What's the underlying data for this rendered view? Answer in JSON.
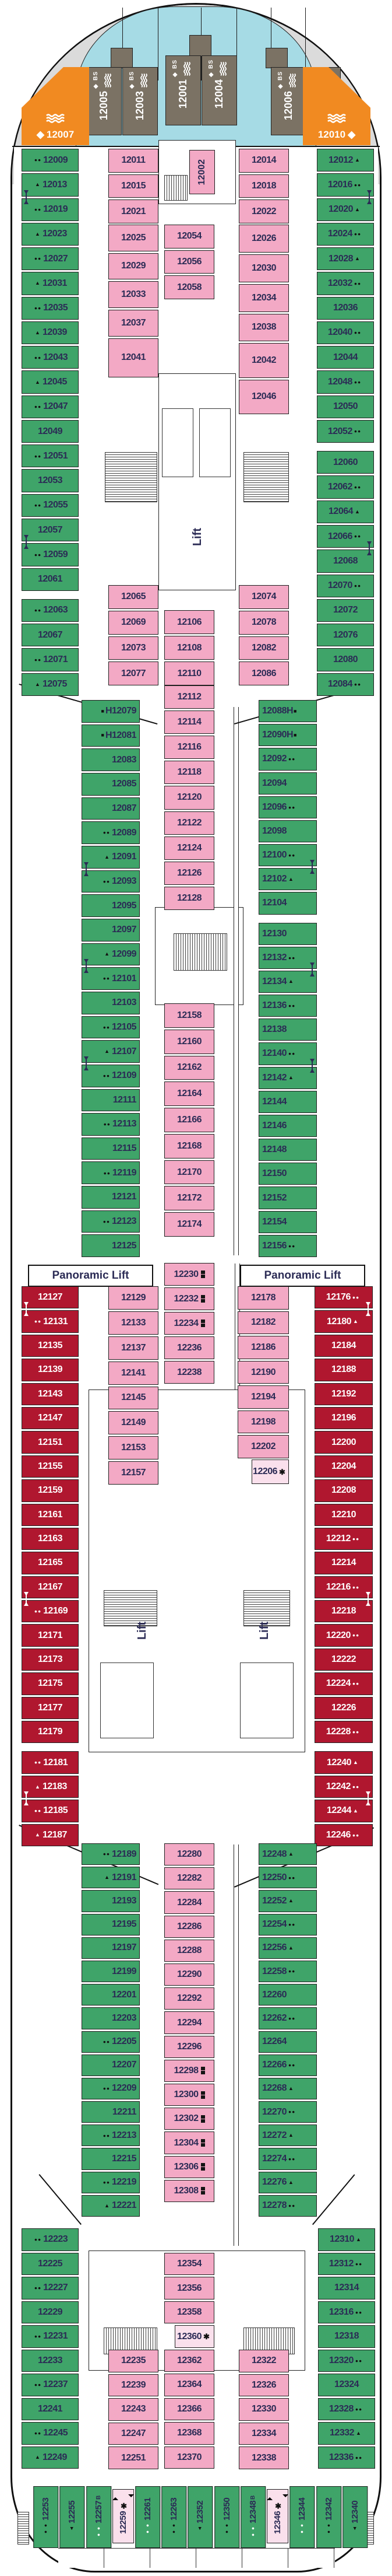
{
  "labels": {
    "lift": "Lift",
    "panoramic_lift": "Panoramic Lift",
    "bs": "BS",
    "diamond": "◆"
  },
  "colors": {
    "green": "#3FA469",
    "pink": "#F3A9C5",
    "light_pink": "#FAE0EC",
    "red": "#B0172F",
    "orange": "#F18A21",
    "suite_brown": "#7B7264",
    "balcony_cyan": "#A6DBE5",
    "hull_gray": "#DBDBDB",
    "number_navy": "#2B2B55"
  },
  "suites": [
    {
      "num": "12005"
    },
    {
      "num": "12003"
    },
    {
      "num": "12001"
    },
    {
      "num": "12004"
    },
    {
      "num": "12006"
    },
    {
      "num": "12008"
    }
  ],
  "orange": {
    "left": {
      "num": "12007"
    },
    "right": {
      "num": "12010"
    }
  },
  "special": {
    "cabin_12002": "12002"
  },
  "columns": {
    "fwd_left_outer": [
      {
        "n": "12009",
        "s": "dots"
      },
      {
        "n": "12013",
        "s": "tri",
        "c": 1
      },
      {
        "n": "12019",
        "s": "dots"
      },
      {
        "n": "12023",
        "s": "tri"
      },
      {
        "n": "12027",
        "s": "dots"
      },
      {
        "n": "12031",
        "s": "tri"
      },
      {
        "n": "12035",
        "s": "dots"
      },
      {
        "n": "12039",
        "s": "tri"
      },
      {
        "n": "12043",
        "s": "dots"
      },
      {
        "n": "12045",
        "s": "tri"
      },
      {
        "n": "12047",
        "s": "dots"
      },
      {
        "n": "12049"
      },
      {
        "n": "12051",
        "s": "dots"
      },
      {
        "n": "12053"
      },
      {
        "n": "12055",
        "s": "dots"
      },
      {
        "n": "12057",
        "c": 1
      },
      {
        "n": "12059",
        "s": "dots"
      },
      {
        "n": "12061"
      },
      {
        "g": 1
      },
      {
        "n": "12063",
        "s": "dots"
      },
      {
        "n": "12067"
      },
      {
        "n": "12071",
        "s": "dots"
      },
      {
        "n": "12075",
        "s": "tri"
      }
    ],
    "fwd_right_outer": [
      {
        "n": "12012",
        "s": "tri"
      },
      {
        "n": "12016",
        "s": "dots",
        "c": 1
      },
      {
        "n": "12020",
        "s": "tri"
      },
      {
        "n": "12024",
        "s": "dots"
      },
      {
        "n": "12028",
        "s": "tri"
      },
      {
        "n": "12032",
        "s": "dots"
      },
      {
        "n": "12036"
      },
      {
        "n": "12040",
        "s": "dots"
      },
      {
        "n": "12044"
      },
      {
        "n": "12048",
        "s": "dots"
      },
      {
        "n": "12050"
      },
      {
        "n": "12052",
        "s": "dots"
      },
      {
        "g": 1
      },
      {
        "n": "12060"
      },
      {
        "n": "12062",
        "s": "dots"
      },
      {
        "n": "12064",
        "s": "tri"
      },
      {
        "n": "12066",
        "s": "dots",
        "c": 1
      },
      {
        "n": "12068"
      },
      {
        "n": "12070",
        "s": "dots"
      },
      {
        "n": "12072"
      },
      {
        "n": "12076"
      },
      {
        "n": "12080"
      },
      {
        "n": "12084",
        "s": "dots"
      }
    ],
    "fwd_pink_1a": [
      {
        "n": "12011"
      },
      {
        "n": "12015"
      },
      {
        "n": "12021"
      }
    ],
    "fwd_pink_1b": [
      {
        "n": "12025"
      },
      {
        "n": "12029"
      },
      {
        "n": "12033"
      },
      {
        "n": "12037"
      },
      {
        "n": "12041",
        "f": 1.5
      }
    ],
    "fwd_pink_1c": [
      {
        "n": "12065"
      },
      {
        "n": "12069"
      },
      {
        "n": "12073"
      },
      {
        "n": "12077"
      }
    ],
    "fwd_pink_2a": [
      {
        "n": "12054"
      },
      {
        "n": "12056"
      },
      {
        "n": "12058"
      }
    ],
    "fwd_pink_2b": [
      {
        "n": "12106"
      },
      {
        "n": "12108"
      },
      {
        "n": "12110"
      }
    ],
    "fwd_pink_ra": [
      {
        "n": "12014"
      },
      {
        "n": "12018"
      },
      {
        "n": "12022"
      }
    ],
    "fwd_pink_rb": [
      {
        "n": "12026"
      },
      {
        "n": "12030"
      },
      {
        "n": "12034"
      },
      {
        "n": "12038"
      },
      {
        "n": "12042",
        "f": 1.25
      },
      {
        "n": "12046",
        "f": 1.25
      }
    ],
    "fwd_pink_rc": [
      {
        "n": "12074"
      },
      {
        "n": "12078"
      },
      {
        "n": "12082"
      },
      {
        "n": "12086"
      }
    ],
    "mid_left": [
      {
        "n": "H12079",
        "s": "sq"
      },
      {
        "n": "H12081",
        "s": "sq"
      },
      {
        "n": "12083"
      },
      {
        "n": "12085"
      },
      {
        "n": "12087"
      },
      {
        "n": "12089",
        "s": "dots"
      },
      {
        "n": "12091",
        "s": "tri",
        "c": 1
      },
      {
        "n": "12093",
        "s": "dots"
      },
      {
        "n": "12095"
      },
      {
        "n": "12097"
      },
      {
        "n": "12099",
        "s": "tri",
        "c": 1
      },
      {
        "n": "12101",
        "s": "dots"
      },
      {
        "n": "12103"
      },
      {
        "n": "12105",
        "s": "dots"
      },
      {
        "n": "12107",
        "s": "tri",
        "c": 1
      },
      {
        "n": "12109",
        "s": "dots"
      },
      {
        "n": "12111"
      },
      {
        "n": "12113",
        "s": "dots"
      },
      {
        "n": "12115"
      },
      {
        "n": "12119",
        "s": "dots"
      },
      {
        "n": "12121"
      },
      {
        "n": "12123",
        "s": "dots"
      },
      {
        "n": "12125"
      }
    ],
    "mid_center_a": [
      {
        "n": "12112"
      },
      {
        "n": "12114"
      },
      {
        "n": "12116"
      },
      {
        "n": "12118"
      },
      {
        "n": "12120"
      },
      {
        "n": "12122"
      },
      {
        "n": "12124"
      },
      {
        "n": "12126"
      },
      {
        "n": "12128"
      }
    ],
    "mid_center_b": [
      {
        "n": "12158"
      },
      {
        "n": "12160"
      },
      {
        "n": "12162"
      },
      {
        "n": "12164"
      },
      {
        "n": "12166"
      },
      {
        "n": "12168"
      },
      {
        "n": "12170"
      },
      {
        "n": "12172"
      },
      {
        "n": "12174"
      }
    ],
    "mid_right": [
      {
        "n": "12088H",
        "s": "sq"
      },
      {
        "n": "12090H",
        "s": "sq"
      },
      {
        "n": "12092",
        "s": "dots"
      },
      {
        "n": "12094"
      },
      {
        "n": "12096",
        "s": "dots"
      },
      {
        "n": "12098"
      },
      {
        "n": "12100",
        "s": "dots",
        "c": 1
      },
      {
        "n": "12102",
        "s": "tri"
      },
      {
        "n": "12104"
      },
      {
        "g": 1
      },
      {
        "n": "12130"
      },
      {
        "n": "12132",
        "s": "dots",
        "c": 1
      },
      {
        "n": "12134",
        "s": "tri"
      },
      {
        "n": "12136",
        "s": "dots"
      },
      {
        "n": "12138"
      },
      {
        "n": "12140",
        "s": "dots",
        "c": 1
      },
      {
        "n": "12142",
        "s": "tri"
      },
      {
        "n": "12144"
      },
      {
        "n": "12146"
      },
      {
        "n": "12148"
      },
      {
        "n": "12150"
      },
      {
        "n": "12152"
      },
      {
        "n": "12154"
      },
      {
        "n": "12156",
        "s": "dots"
      }
    ],
    "red_left": [
      {
        "n": "12127",
        "c": 1
      },
      {
        "n": "12131",
        "s": "dots"
      },
      {
        "n": "12135"
      },
      {
        "n": "12139"
      },
      {
        "n": "12143"
      },
      {
        "n": "12147"
      },
      {
        "n": "12151"
      },
      {
        "n": "12155"
      },
      {
        "n": "12159"
      },
      {
        "n": "12161"
      },
      {
        "n": "12163"
      },
      {
        "n": "12165"
      },
      {
        "n": "12167",
        "c": 1
      },
      {
        "n": "12169",
        "s": "dots"
      },
      {
        "n": "12171"
      },
      {
        "n": "12173"
      },
      {
        "n": "12175"
      },
      {
        "n": "12177"
      },
      {
        "n": "12179"
      },
      {
        "g": 1
      },
      {
        "n": "12181",
        "s": "dots"
      },
      {
        "n": "12183",
        "s": "tri",
        "c": 1
      },
      {
        "n": "12185",
        "s": "dots"
      },
      {
        "n": "12187",
        "s": "tri"
      }
    ],
    "red_right": [
      {
        "n": "12176",
        "s": "dots",
        "c": 1
      },
      {
        "n": "12180",
        "s": "tri"
      },
      {
        "n": "12184"
      },
      {
        "n": "12188"
      },
      {
        "n": "12192"
      },
      {
        "n": "12196"
      },
      {
        "n": "12200"
      },
      {
        "n": "12204"
      },
      {
        "n": "12208"
      },
      {
        "n": "12210"
      },
      {
        "n": "12212",
        "s": "dots"
      },
      {
        "n": "12214"
      },
      {
        "n": "12216",
        "s": "dots",
        "c": 1
      },
      {
        "n": "12218"
      },
      {
        "n": "12220",
        "s": "dots"
      },
      {
        "n": "12222"
      },
      {
        "n": "12224",
        "s": "dots"
      },
      {
        "n": "12226"
      },
      {
        "n": "12228",
        "s": "dots"
      },
      {
        "g": 1
      },
      {
        "n": "12240",
        "s": "tri"
      },
      {
        "n": "12242",
        "s": "dots",
        "c": 1
      },
      {
        "n": "12244",
        "s": "tri"
      },
      {
        "n": "12246",
        "s": "dots"
      }
    ],
    "red_pink_left": [
      {
        "n": "12129"
      },
      {
        "n": "12133"
      },
      {
        "n": "12137"
      },
      {
        "n": "12141"
      },
      {
        "n": "12145"
      },
      {
        "n": "12149"
      },
      {
        "n": "12153"
      },
      {
        "n": "12157"
      }
    ],
    "red_center": [
      {
        "n": "12230",
        "s": "bunk"
      },
      {
        "n": "12232",
        "s": "bunk"
      },
      {
        "n": "12234",
        "s": "bunk"
      },
      {
        "n": "12236"
      },
      {
        "n": "12238"
      }
    ],
    "red_pink_right": [
      {
        "n": "12178"
      },
      {
        "n": "12182"
      },
      {
        "n": "12186"
      },
      {
        "n": "12190"
      },
      {
        "n": "12194"
      },
      {
        "n": "12198"
      },
      {
        "n": "12202"
      }
    ],
    "cabin_12206_list": [
      {
        "n": "12206",
        "s": "star",
        "l": 1
      }
    ],
    "aft_left": [
      {
        "n": "12189",
        "s": "dots"
      },
      {
        "n": "12191",
        "s": "tri"
      },
      {
        "n": "12193"
      },
      {
        "n": "12195"
      },
      {
        "n": "12197"
      },
      {
        "n": "12199"
      },
      {
        "n": "12201"
      },
      {
        "n": "12203"
      },
      {
        "n": "12205",
        "s": "dots"
      },
      {
        "n": "12207"
      },
      {
        "n": "12209",
        "s": "dots"
      },
      {
        "n": "12211"
      },
      {
        "n": "12213",
        "s": "dots"
      },
      {
        "n": "12215"
      },
      {
        "n": "12219",
        "s": "dots"
      },
      {
        "n": "12221",
        "s": "tri"
      }
    ],
    "aft_center_a": [
      {
        "n": "12280"
      },
      {
        "n": "12282"
      },
      {
        "n": "12284"
      },
      {
        "n": "12286"
      },
      {
        "n": "12288"
      },
      {
        "n": "12290"
      },
      {
        "n": "12292"
      },
      {
        "n": "12294"
      },
      {
        "n": "12296"
      },
      {
        "n": "12298",
        "s": "bunk"
      },
      {
        "n": "12300",
        "s": "bunk"
      },
      {
        "n": "12302",
        "s": "bunk"
      },
      {
        "n": "12304",
        "s": "bunk"
      },
      {
        "n": "12306",
        "s": "bunk"
      },
      {
        "n": "12308",
        "s": "bunk"
      }
    ],
    "aft_right": [
      {
        "n": "12248",
        "s": "tri"
      },
      {
        "n": "12250",
        "s": "dots"
      },
      {
        "n": "12252",
        "s": "tri"
      },
      {
        "n": "12254",
        "s": "dots"
      },
      {
        "n": "12256",
        "s": "tri"
      },
      {
        "n": "12258",
        "s": "dots"
      },
      {
        "n": "12260"
      },
      {
        "n": "12262",
        "s": "dots"
      },
      {
        "n": "12264"
      },
      {
        "n": "12266",
        "s": "dots"
      },
      {
        "n": "12268",
        "s": "tri"
      },
      {
        "n": "12270",
        "s": "dots"
      },
      {
        "n": "12272",
        "s": "tri"
      },
      {
        "n": "12274",
        "s": "dots"
      },
      {
        "n": "12276",
        "s": "tri"
      },
      {
        "n": "12278",
        "s": "dots"
      }
    ],
    "aft_left_outer": [
      {
        "n": "12223",
        "s": "dots"
      },
      {
        "n": "12225"
      },
      {
        "n": "12227",
        "s": "dots"
      },
      {
        "n": "12229"
      },
      {
        "n": "12231",
        "s": "dots"
      },
      {
        "n": "12233"
      },
      {
        "n": "12237",
        "s": "dots"
      },
      {
        "n": "12241"
      },
      {
        "n": "12245",
        "s": "dots"
      },
      {
        "n": "12249",
        "s": "tri"
      }
    ],
    "aft_right_outer": [
      {
        "n": "12310",
        "s": "tri"
      },
      {
        "n": "12312",
        "s": "dots"
      },
      {
        "n": "12314"
      },
      {
        "n": "12316",
        "s": "dots"
      },
      {
        "n": "12318"
      },
      {
        "n": "12320",
        "s": "dots"
      },
      {
        "n": "12324"
      },
      {
        "n": "12328",
        "s": "dots"
      },
      {
        "n": "12332",
        "s": "tri"
      },
      {
        "n": "12336",
        "s": "dots"
      }
    ],
    "aft_pink_left": [
      {
        "n": "12235"
      },
      {
        "n": "12239"
      },
      {
        "n": "12243"
      },
      {
        "n": "12247"
      },
      {
        "n": "12251"
      }
    ],
    "aft_pink_right": [
      {
        "n": "12322"
      },
      {
        "n": "12326"
      },
      {
        "n": "12330"
      },
      {
        "n": "12334"
      },
      {
        "n": "12338"
      }
    ],
    "aft_center_b": [
      {
        "n": "12354"
      },
      {
        "n": "12356"
      },
      {
        "n": "12358"
      },
      {
        "n": "12360",
        "s": "star",
        "l": 1
      },
      {
        "n": "12362"
      },
      {
        "n": "12364"
      },
      {
        "n": "12366"
      },
      {
        "n": "12368"
      },
      {
        "n": "12370"
      }
    ],
    "bottom_row": [
      {
        "n": "12253",
        "s": "dots"
      },
      {
        "n": "12255",
        "s": "tri"
      },
      {
        "n": "12257",
        "s": "dots",
        "b": "B",
        "w": 1
      },
      {
        "n": "12259",
        "s": "star",
        "l": 1
      },
      {
        "n": "12261",
        "s": "dots",
        "w": 1
      },
      {
        "n": "12263",
        "s": "dots"
      },
      {
        "n": "12352",
        "s": "tri"
      },
      {
        "n": "12350",
        "s": "dots"
      },
      {
        "n": "12348",
        "s": "dots",
        "b": "B",
        "w": 1
      },
      {
        "n": "12346",
        "s": "star",
        "l": 1
      },
      {
        "n": "12344",
        "s": "dots",
        "w": 1
      },
      {
        "n": "12342",
        "s": "dots"
      },
      {
        "n": "12340",
        "s": "tri"
      }
    ]
  }
}
